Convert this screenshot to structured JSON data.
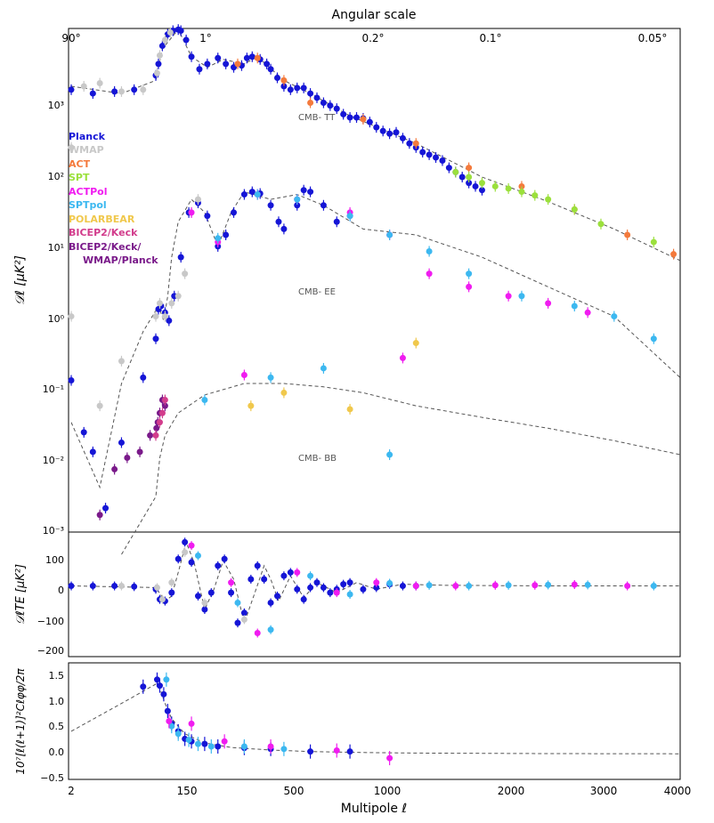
{
  "figure": {
    "top_axis_title": "Angular scale",
    "top_ticks": [
      "90°",
      "1°",
      "0.2°",
      "0.1°",
      "0.05°"
    ],
    "bottom_ticks": [
      "2",
      "150",
      "500",
      "1000",
      "2000",
      "3000",
      "4000"
    ],
    "xlabel": "Multipole ℓ",
    "panel1_ylabel": "𝒟ℓ [μK²]",
    "panel2_ylabel": "𝒟ℓTE [μK²]",
    "panel3_ylabel": "10⁷[ℓ(ℓ+1)]²Cℓφφ/2π",
    "panel1_yticks": [
      "10⁻³",
      "10⁻²",
      "10⁻¹",
      "10⁰",
      "10¹",
      "10²",
      "10³"
    ],
    "panel2_yticks": [
      "100",
      "0",
      "−100",
      "−200"
    ],
    "panel3_yticks": [
      "1.5",
      "1.0",
      "0.5",
      "0.0",
      "−0.5"
    ],
    "annotations": [
      "CMB- TT",
      "CMB- EE",
      "CMB- BB"
    ]
  },
  "legend": [
    {
      "label": "Planck",
      "color": "#1515d6"
    },
    {
      "label": "WMAP",
      "color": "#c8c8c8"
    },
    {
      "label": "ACT",
      "color": "#f47a3c"
    },
    {
      "label": "SPT",
      "color": "#9be03c"
    },
    {
      "label": "ACTPol",
      "color": "#f01cf0"
    },
    {
      "label": "SPTpol",
      "color": "#3cb8f0"
    },
    {
      "label": "POLARBEAR",
      "color": "#f0c84c"
    },
    {
      "label": "BICEP2/Keck",
      "color": "#d23c8c"
    },
    {
      "label": "BICEP2/Keck/",
      "color": "#7a1a8a"
    },
    {
      "label": "WMAP/Planck",
      "color": "#7a1a8a"
    }
  ],
  "chart_data": [
    {
      "type": "scatter",
      "panel": "power-spectra",
      "xlabel": "Multipole ℓ",
      "ylabel": "𝒟ℓ [μK²]",
      "yscale": "log",
      "ylim": [
        0.001,
        6000
      ],
      "xlim": [
        2,
        4000
      ],
      "series": [
        {
          "name": "Planck",
          "spectrum": "TT",
          "color": "#1515d6",
          "x": [
            2,
            4,
            8,
            15,
            30,
            50,
            80,
            120,
            160,
            200,
            220,
            260,
            300,
            360,
            420,
            500,
            560,
            620,
            680,
            720,
            760,
            820,
            870,
            900,
            950,
            1000,
            1050,
            1100,
            1150,
            1200,
            1250,
            1300,
            1350,
            1400,
            1450,
            1500,
            1550,
            1600,
            1650,
            1700,
            1750,
            1800,
            1850,
            1900,
            1950,
            2000,
            2050,
            2100,
            2150,
            2200,
            2250,
            2300,
            2350,
            2400,
            2450,
            2500
          ],
          "y": [
            900,
            800,
            850,
            900,
            1400,
            2000,
            3500,
            5000,
            5600,
            5800,
            5600,
            4200,
            2500,
            1700,
            2000,
            2400,
            2000,
            1800,
            1900,
            2400,
            2500,
            2300,
            2000,
            1700,
            1300,
            1000,
            900,
            950,
            950,
            800,
            700,
            600,
            550,
            500,
            420,
            380,
            380,
            370,
            330,
            280,
            250,
            230,
            240,
            200,
            170,
            150,
            130,
            120,
            110,
            100,
            80,
            70,
            60,
            50,
            45,
            40
          ]
        },
        {
          "name": "WMAP",
          "spectrum": "TT",
          "color": "#c8c8c8",
          "x": [
            2,
            3,
            5,
            10,
            20,
            40,
            60,
            100,
            140
          ],
          "y": [
            150,
            1000,
            1100,
            850,
            900,
            1500,
            2600,
            4200,
            5300
          ]
        },
        {
          "name": "ACT",
          "spectrum": "TT",
          "color": "#f47a3c",
          "x": [
            650,
            800,
            1000,
            1200,
            1600,
            2000,
            2400,
            2800,
            3200,
            3600,
            3950
          ],
          "y": [
            2000,
            2400,
            1200,
            600,
            360,
            170,
            80,
            45,
            22,
            10,
            5.5
          ]
        },
        {
          "name": "SPT",
          "spectrum": "TT",
          "color": "#9be03c",
          "x": [
            2300,
            2400,
            2500,
            2600,
            2700,
            2800,
            2900,
            3000,
            3200,
            3400,
            3800
          ],
          "y": [
            70,
            60,
            50,
            45,
            42,
            38,
            34,
            30,
            22,
            14,
            8
          ]
        },
        {
          "name": "Planck",
          "spectrum": "EE",
          "color": "#1515d6",
          "x": [
            2,
            3,
            4,
            6,
            10,
            20,
            30,
            50,
            70,
            100,
            130,
            170,
            220,
            280,
            350,
            420,
            500,
            560,
            620,
            700,
            760,
            820,
            900,
            960,
            1000,
            1100,
            1150,
            1200,
            1300,
            1400,
            1500
          ],
          "y": [
            0.11,
            0.022,
            0.012,
            0.0021,
            0.016,
            0.12,
            0.4,
            1.0,
            1.1,
            0.9,
            0.7,
            1.5,
            5,
            20,
            27,
            18,
            7,
            10,
            20,
            35,
            38,
            36,
            25,
            15,
            12,
            25,
            40,
            38,
            25,
            15,
            18
          ]
        },
        {
          "name": "WMAP",
          "spectrum": "EE",
          "color": "#c8c8c8",
          "x": [
            2,
            5,
            10,
            30,
            60,
            100,
            150,
            200,
            250,
            300,
            350
          ],
          "y": [
            0.8,
            0.05,
            0.2,
            0.8,
            1.2,
            0.8,
            1.2,
            1.5,
            3,
            20,
            30
          ]
        },
        {
          "name": "ACTPol",
          "spectrum": "EE",
          "color": "#f01cf0",
          "x": [
            300,
            500,
            800,
            1100,
            1500,
            1800,
            2100,
            2400,
            2700,
            3000,
            3300
          ],
          "y": [
            20,
            8,
            35,
            30,
            20,
            10,
            3,
            2,
            1.5,
            1.2,
            0.9
          ]
        },
        {
          "name": "SPTpol",
          "spectrum": "EE",
          "color": "#3cb8f0",
          "x": [
            500,
            800,
            1100,
            1500,
            1800,
            2100,
            2400,
            2800,
            3200,
            3500,
            3800
          ],
          "y": [
            9,
            35,
            30,
            18,
            10,
            6,
            3,
            1.5,
            1.1,
            0.8,
            0.4
          ]
        },
        {
          "name": "BICEP2/Keck/WMAP/Planck",
          "spectrum": "BB",
          "color": "#7a1a8a",
          "x": [
            5,
            8,
            12,
            18,
            25,
            35,
            45,
            60,
            80,
            100
          ],
          "y": [
            0.0017,
            0.007,
            0.01,
            0.012,
            0.02,
            0.025,
            0.03,
            0.04,
            0.06,
            0.05
          ]
        },
        {
          "name": "BICEP2/Keck",
          "spectrum": "BB",
          "color": "#d23c8c",
          "x": [
            30,
            60,
            80,
            100
          ],
          "y": [
            0.02,
            0.03,
            0.04,
            0.06
          ]
        },
        {
          "name": "SPTpol",
          "spectrum": "BB",
          "color": "#3cb8f0",
          "x": [
            400,
            900,
            1300,
            1800
          ],
          "y": [
            0.06,
            0.12,
            0.16,
            0.011
          ]
        },
        {
          "name": "ACTPol",
          "spectrum": "BB",
          "color": "#f01cf0",
          "x": [
            700,
            1900
          ],
          "y": [
            0.13,
            0.22
          ]
        },
        {
          "name": "POLARBEAR",
          "spectrum": "BB",
          "color": "#f0c84c",
          "x": [
            750,
            1000,
            1500,
            2000
          ],
          "y": [
            0.05,
            0.075,
            0.045,
            0.35
          ]
        }
      ]
    },
    {
      "type": "scatter",
      "panel": "TE",
      "ylabel": "𝒟ℓTE [μK²]",
      "ylim": [
        -210,
        160
      ],
      "series": [
        {
          "name": "Planck",
          "color": "#1515d6",
          "x": [
            2,
            4,
            8,
            15,
            30,
            60,
            100,
            150,
            200,
            250,
            300,
            350,
            400,
            450,
            500,
            550,
            600,
            650,
            700,
            750,
            800,
            850,
            900,
            950,
            1000,
            1050,
            1100,
            1150,
            1200,
            1250,
            1300,
            1350,
            1400,
            1450,
            1500,
            1600,
            1700,
            1800,
            1900,
            2000
          ],
          "y": [
            0,
            0,
            0,
            -2,
            -10,
            -40,
            -45,
            -20,
            80,
            130,
            70,
            -30,
            -70,
            -20,
            60,
            80,
            -20,
            -110,
            -80,
            20,
            60,
            20,
            -50,
            -30,
            30,
            40,
            -10,
            -40,
            -5,
            10,
            -5,
            -20,
            -10,
            5,
            10,
            -10,
            -5,
            5,
            0,
            0
          ]
        },
        {
          "name": "ACTPol",
          "color": "#f01cf0",
          "x": [
            300,
            600,
            800,
            1100,
            1400,
            1700,
            2000,
            2300,
            2600,
            2900,
            3200,
            3600
          ],
          "y": [
            120,
            10,
            -140,
            40,
            -20,
            10,
            0,
            0,
            2,
            2,
            4,
            0
          ]
        },
        {
          "name": "SPTpol",
          "color": "#3cb8f0",
          "x": [
            350,
            650,
            900,
            1200,
            1500,
            1800,
            2100,
            2400,
            2700,
            3000,
            3300,
            3800
          ],
          "y": [
            90,
            -50,
            -130,
            30,
            -25,
            8,
            2,
            0,
            2,
            3,
            3,
            0
          ]
        },
        {
          "name": "WMAP",
          "color": "#c8c8c8",
          "x": [
            10,
            40,
            80,
            150,
            250,
            400,
            700
          ],
          "y": [
            0,
            -5,
            -40,
            10,
            100,
            -50,
            -100
          ]
        }
      ]
    },
    {
      "type": "scatter",
      "panel": "lensing",
      "ylabel": "10⁷[ℓ(ℓ+1)]²Cℓφφ/2π",
      "ylim": [
        -0.5,
        1.8
      ],
      "series": [
        {
          "name": "Planck",
          "color": "#1515d6",
          "x": [
            20,
            40,
            60,
            90,
            120,
            150,
            200,
            250,
            300,
            400,
            500,
            700,
            900,
            1200,
            1500
          ],
          "y": [
            1.33,
            1.47,
            1.35,
            1.18,
            0.85,
            0.6,
            0.45,
            0.3,
            0.25,
            0.2,
            0.15,
            0.12,
            0.1,
            0.05,
            0.05
          ]
        },
        {
          "name": "SPTpol",
          "color": "#3cb8f0",
          "x": [
            110,
            150,
            200,
            280,
            350,
            450,
            700,
            1000
          ],
          "y": [
            1.47,
            0.55,
            0.4,
            0.28,
            0.2,
            0.15,
            0.15,
            0.1
          ]
        },
        {
          "name": "ACTPol",
          "color": "#f01cf0",
          "x": [
            130,
            300,
            550,
            900,
            1400,
            1800
          ],
          "y": [
            0.65,
            0.6,
            0.25,
            0.15,
            0.07,
            -0.08
          ]
        }
      ]
    }
  ],
  "theory_curve_color": "#555555"
}
